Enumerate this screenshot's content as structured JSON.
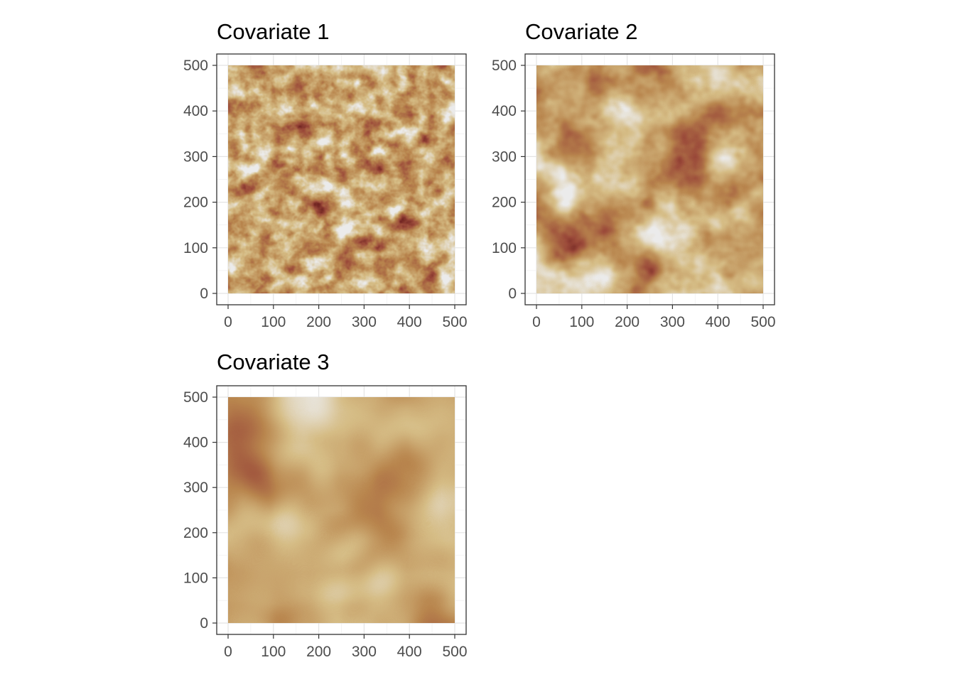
{
  "chart_data": [
    {
      "type": "heatmap",
      "title": "Covariate 1",
      "xlabel": "",
      "ylabel": "",
      "xlim": [
        0,
        500
      ],
      "ylim": [
        0,
        500
      ],
      "x_ticks": [
        0,
        100,
        200,
        300,
        400,
        500
      ],
      "y_ticks": [
        0,
        100,
        200,
        300,
        400,
        500
      ],
      "grid": true,
      "texture": "fine-grained random field",
      "colors": [
        "#5a0f14",
        "#9b4a3a",
        "#b9864e",
        "#d6bd86",
        "#ececec"
      ]
    },
    {
      "type": "heatmap",
      "title": "Covariate 2",
      "xlabel": "",
      "ylabel": "",
      "xlim": [
        0,
        500
      ],
      "ylim": [
        0,
        500
      ],
      "x_ticks": [
        0,
        100,
        200,
        300,
        400,
        500
      ],
      "y_ticks": [
        0,
        100,
        200,
        300,
        400,
        500
      ],
      "grid": true,
      "texture": "medium-grained random field",
      "colors": [
        "#5a0f14",
        "#9b4a3a",
        "#b9864e",
        "#d6bd86",
        "#ececec"
      ]
    },
    {
      "type": "heatmap",
      "title": "Covariate 3",
      "xlabel": "",
      "ylabel": "",
      "xlim": [
        0,
        500
      ],
      "ylim": [
        0,
        500
      ],
      "x_ticks": [
        0,
        100,
        200,
        300,
        400,
        500
      ],
      "y_ticks": [
        0,
        100,
        200,
        300,
        400,
        500
      ],
      "grid": true,
      "texture": "coarse-grained random field",
      "colors": [
        "#5a0f14",
        "#9b4a3a",
        "#b9864e",
        "#d6bd86",
        "#ececec"
      ]
    }
  ]
}
